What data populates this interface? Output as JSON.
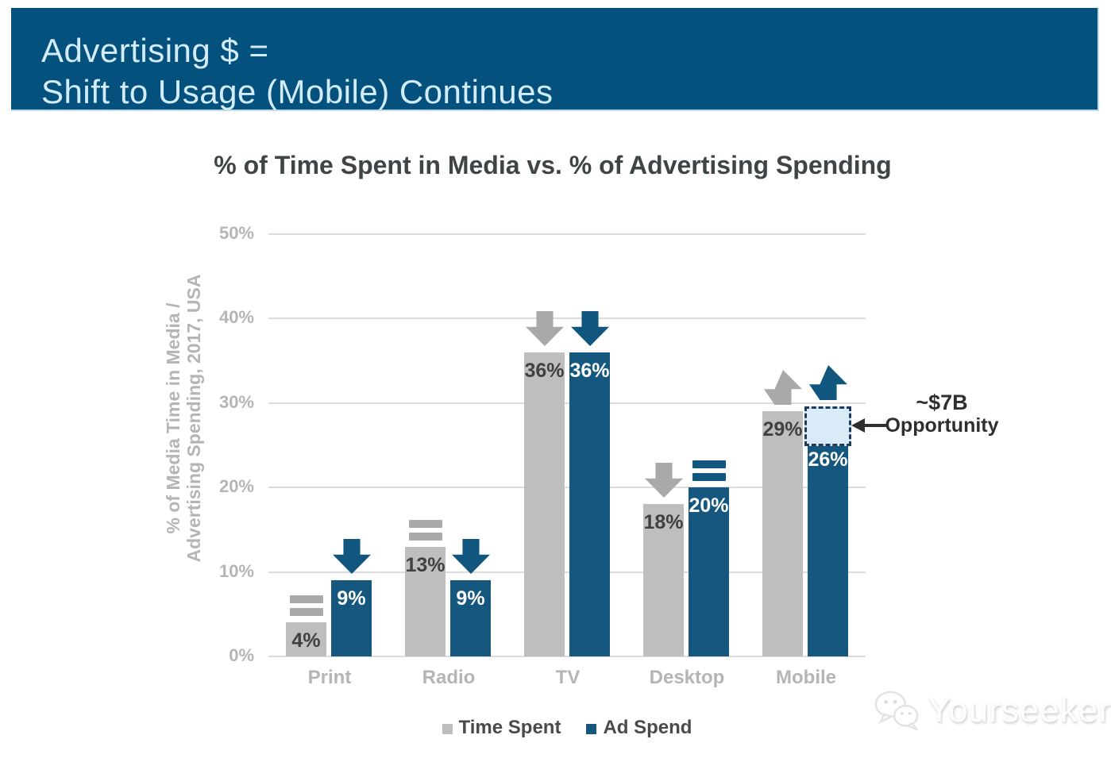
{
  "header": {
    "line1": "Advertising $ =",
    "line2": "Shift to Usage (Mobile) Continues"
  },
  "y_axis": {
    "line1": "% of Media Time in Media /",
    "line2": "Advertising Spending, 2017, USA"
  },
  "annotation": {
    "line1": "~$7B",
    "line2": "Opportunity"
  },
  "watermark": {
    "text": "Yourseeker"
  },
  "colors": {
    "header_bg": "#05517e",
    "header_text": "#d3ecfa",
    "title_text": "#3f4447",
    "axis_text": "#b5b5b5",
    "gridline": "#dcdcdc",
    "bar_gray": "#bebebe",
    "bar_blue": "#15577e",
    "trend_gray": "#a9a9a9",
    "trend_blue": "#11567f",
    "value_dark": "#404040",
    "value_light": "#ffffff",
    "opportunity_fill": "#daeaf6",
    "opportunity_border": "#1d3c59",
    "annotation_text": "#2f2f2f",
    "legend_text": "#4a4a4a"
  },
  "chart_data": {
    "type": "bar",
    "title": "% of Time Spent in Media vs. % of Advertising Spending",
    "ylabel": "% of Media Time in Media / Advertising Spending, 2017, USA",
    "ylim": [
      0,
      50
    ],
    "ytick_values": [
      0,
      10,
      20,
      30,
      40,
      50
    ],
    "ytick_labels": [
      "0%",
      "10%",
      "20%",
      "30%",
      "40%",
      "50%"
    ],
    "grid": true,
    "legend_position": "bottom",
    "categories": [
      "Print",
      "Radio",
      "TV",
      "Desktop",
      "Mobile"
    ],
    "series": [
      {
        "name": "Time Spent",
        "color_key": "bar_gray",
        "values": [
          4,
          13,
          36,
          18,
          29
        ],
        "value_labels": [
          "4%",
          "13%",
          "36%",
          "18%",
          "29%"
        ],
        "trends": [
          "flat",
          "flat",
          "down",
          "down",
          "up"
        ]
      },
      {
        "name": "Ad Spend",
        "color_key": "bar_blue",
        "values": [
          9,
          9,
          36,
          20,
          26
        ],
        "value_labels": [
          "9%",
          "9%",
          "36%",
          "20%",
          "26%"
        ],
        "trends": [
          "down",
          "down",
          "down",
          "flat",
          "up"
        ]
      }
    ],
    "opportunity": {
      "category": "Mobile",
      "series": "Ad Spend",
      "from": 26,
      "to": 29,
      "label": "~$7B Opportunity"
    }
  }
}
